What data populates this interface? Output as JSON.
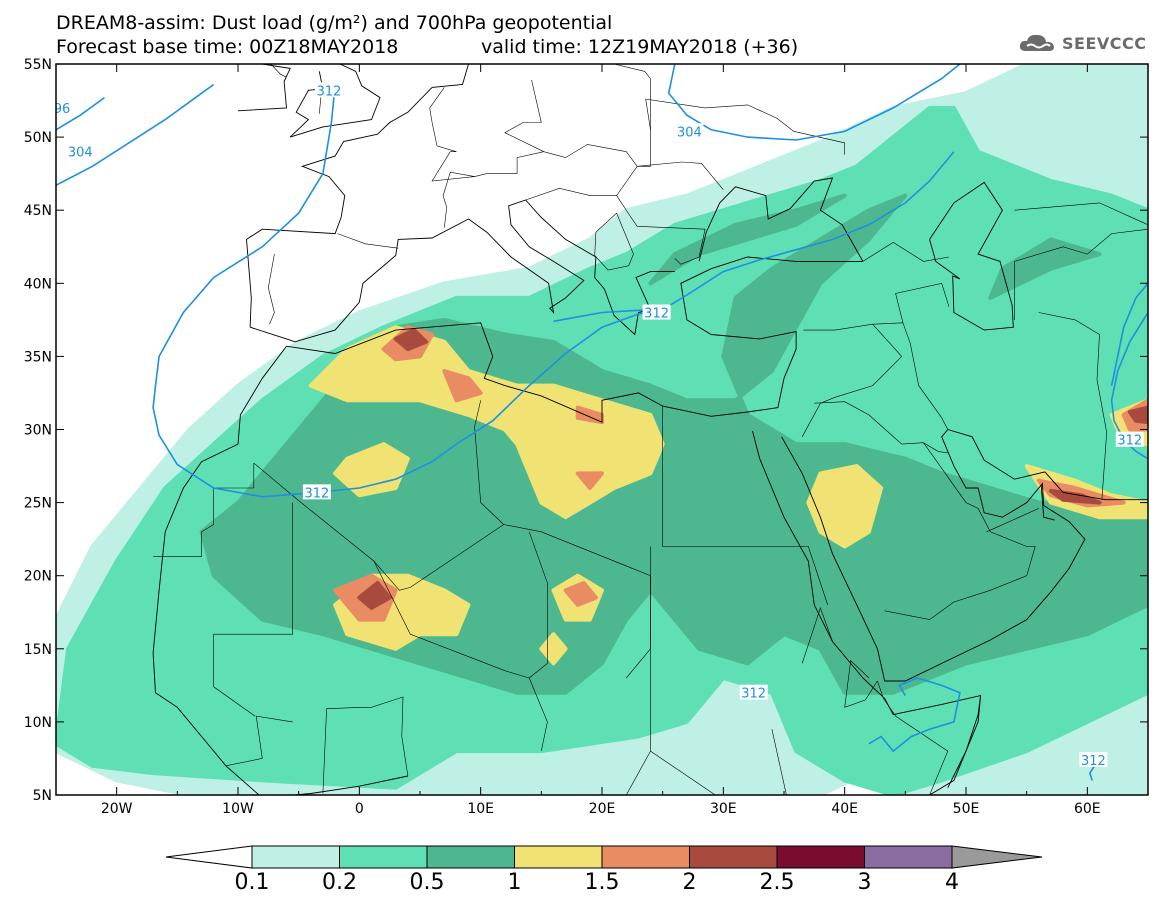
{
  "header": {
    "title_line1": "DREAM8-assim: Dust load (g/m²) and 700hPa geopotential",
    "title_line2_left": "Forecast base time: 00Z18MAY2018",
    "title_line2_right": "valid time: 12Z19MAY2018 (+36)"
  },
  "logo": {
    "text": "SEEVCCC",
    "icon": "cloud-icon"
  },
  "map": {
    "lon_range": [
      -25,
      65
    ],
    "lat_range": [
      5,
      55
    ],
    "lat_ticks": [
      "55N",
      "50N",
      "45N",
      "40N",
      "35N",
      "30N",
      "25N",
      "20N",
      "15N",
      "10N",
      "5N"
    ],
    "lon_ticks": [
      "20W",
      "10W",
      "0",
      "10E",
      "20E",
      "30E",
      "40E",
      "50E",
      "60E"
    ],
    "colors": {
      "ocean": "#ffffff",
      "contour_line": "#1e90e0",
      "coast_line": "#000000"
    }
  },
  "contour_labels": [
    {
      "text": "312",
      "lon": -3.5,
      "lat": 25.7
    },
    {
      "text": "312",
      "lon": 32.5,
      "lat": 12
    },
    {
      "text": "312",
      "lon": 24.5,
      "lat": 38
    },
    {
      "text": "312",
      "lon": 60.5,
      "lat": 7.4
    },
    {
      "text": "312",
      "lon": 63.5,
      "lat": 29.3
    },
    {
      "text": "304",
      "lon": -23,
      "lat": 49
    },
    {
      "text": "304",
      "lon": 27.2,
      "lat": 50.4
    },
    {
      "text": "312",
      "lon": -2.5,
      "lat": 53.2
    },
    {
      "text": "96",
      "lon": -24.5,
      "lat": 52
    }
  ],
  "colorbar": {
    "levels": [
      "0.1",
      "0.2",
      "0.5",
      "1",
      "1.5",
      "2",
      "2.5",
      "3",
      "4"
    ],
    "colors": [
      "#ffffff",
      "#bff0e5",
      "#5fe0b4",
      "#4db88f",
      "#f0e374",
      "#e98c63",
      "#a84b3e",
      "#7a0d2e",
      "#8c6da0",
      "#9a9a9a"
    ]
  }
}
